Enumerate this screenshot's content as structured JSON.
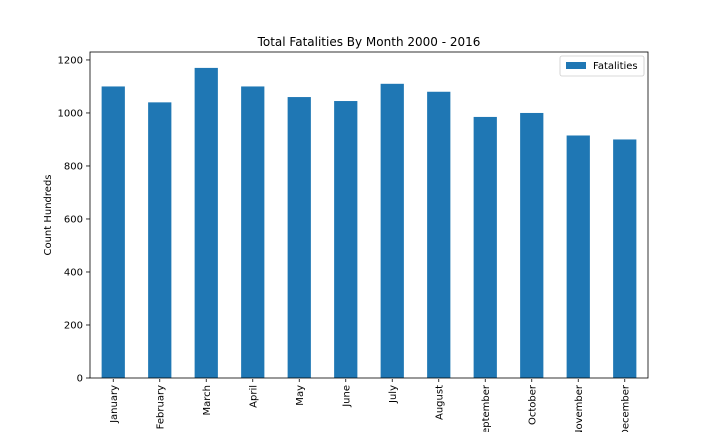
{
  "chart_data": {
    "type": "bar",
    "title": "Total Fatalities By Month 2000 - 2016",
    "xlabel": "",
    "ylabel": "Count Hundreds",
    "ylim": [
      0,
      1230
    ],
    "yticks": [
      0,
      200,
      400,
      600,
      800,
      1000,
      1200
    ],
    "categories": [
      "January",
      "February",
      "March",
      "April",
      "May",
      "June",
      "July",
      "August",
      "September",
      "October",
      "November",
      "December"
    ],
    "series": [
      {
        "name": "Fatalities",
        "color": "#1f77b4",
        "values": [
          1100,
          1040,
          1170,
          1100,
          1060,
          1045,
          1110,
          1080,
          985,
          1000,
          915,
          900
        ]
      }
    ],
    "legend": {
      "position": "top-right"
    },
    "grid": false
  }
}
